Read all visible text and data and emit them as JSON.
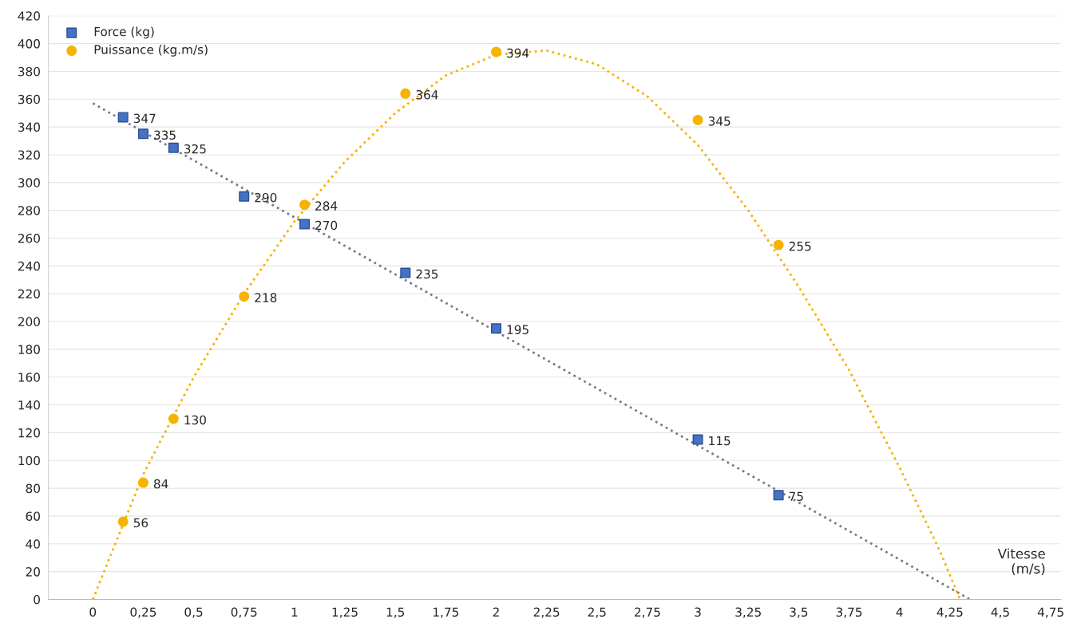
{
  "chart_data": {
    "type": "scatter",
    "xlabel": "Vitesse\n(m/s)",
    "xlim": [
      -0.22,
      4.8
    ],
    "xticks": [
      {
        "value": 0,
        "label": "0"
      },
      {
        "value": 0.25,
        "label": "0,25"
      },
      {
        "value": 0.5,
        "label": "0,5"
      },
      {
        "value": 0.75,
        "label": "0,75"
      },
      {
        "value": 1,
        "label": "1"
      },
      {
        "value": 1.25,
        "label": "1,25"
      },
      {
        "value": 1.5,
        "label": "1,5"
      },
      {
        "value": 1.75,
        "label": "1,75"
      },
      {
        "value": 2,
        "label": "2"
      },
      {
        "value": 2.25,
        "label": "2,25"
      },
      {
        "value": 2.5,
        "label": "2,5"
      },
      {
        "value": 2.75,
        "label": "2,75"
      },
      {
        "value": 3,
        "label": "3"
      },
      {
        "value": 3.25,
        "label": "3,25"
      },
      {
        "value": 3.5,
        "label": "3,5"
      },
      {
        "value": 3.75,
        "label": "3,75"
      },
      {
        "value": 4,
        "label": "4"
      },
      {
        "value": 4.25,
        "label": "4,25"
      },
      {
        "value": 4.5,
        "label": "4,5"
      },
      {
        "value": 4.75,
        "label": "4,75"
      }
    ],
    "ylim": [
      0,
      420
    ],
    "yticks": [
      0,
      20,
      40,
      60,
      80,
      100,
      120,
      140,
      160,
      180,
      200,
      220,
      240,
      260,
      280,
      300,
      320,
      340,
      360,
      380,
      400,
      420
    ],
    "grid": "y",
    "legend": "top left",
    "series": [
      {
        "name": "Force (kg)",
        "marker": "square",
        "color": "#4472c4",
        "x": [
          0.15,
          0.25,
          0.4,
          0.75,
          1.05,
          1.55,
          2.0,
          3.0,
          3.4
        ],
        "values": [
          347,
          335,
          325,
          290,
          270,
          235,
          195,
          115,
          75
        ],
        "value_labels": [
          "347",
          "335",
          "325",
          "290",
          "270",
          "235",
          "195",
          "115",
          "75"
        ]
      },
      {
        "name": "Puissance (kg.m/s)",
        "marker": "circle",
        "color": "#f5b400",
        "x": [
          0.15,
          0.25,
          0.4,
          0.75,
          1.05,
          1.55,
          2.0,
          3.0,
          3.4
        ],
        "values": [
          56,
          84,
          130,
          218,
          284,
          364,
          394,
          345,
          255
        ],
        "value_labels": [
          "56",
          "84",
          "130",
          "218",
          "284",
          "364",
          "394",
          "345",
          "255"
        ]
      },
      {
        "type": "line",
        "line_style": "dotted",
        "marker": "none",
        "color": "#7a7a8c",
        "x": [
          0,
          4.35
        ],
        "values": [
          357,
          0
        ]
      },
      {
        "type": "line",
        "line_style": "dotted",
        "marker": "none",
        "color": "#f5b400",
        "x": [
          0,
          0.25,
          0.5,
          0.75,
          1,
          1.25,
          1.5,
          1.75,
          2,
          2.25,
          2.5,
          2.75,
          3,
          3.25,
          3.5,
          3.75,
          4,
          4.2,
          4.3
        ],
        "values": [
          0,
          90,
          160,
          220,
          272,
          315,
          350,
          377,
          392,
          395,
          385,
          362,
          327,
          280,
          225,
          165,
          95,
          35,
          0
        ]
      }
    ]
  }
}
